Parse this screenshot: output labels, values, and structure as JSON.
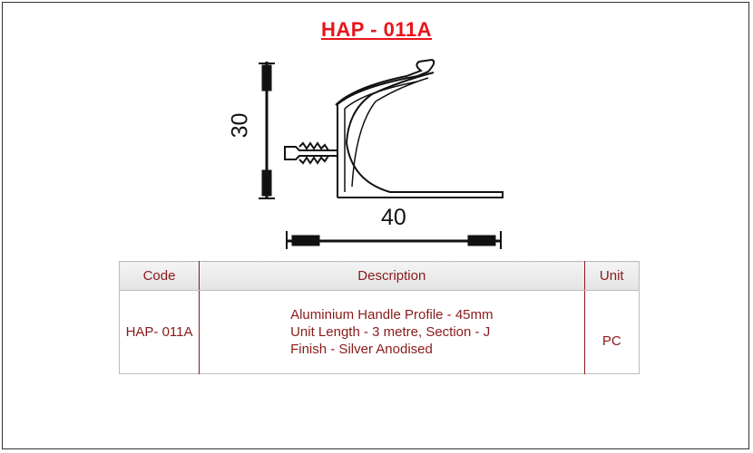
{
  "product": {
    "code_title": "HAP - 011A"
  },
  "drawing": {
    "dim_height_label": "30",
    "dim_width_label": "40"
  },
  "table": {
    "headers": {
      "code": "Code",
      "description": "Description",
      "unit": "Unit"
    },
    "rows": [
      {
        "code": "HAP- 011A",
        "description": [
          "Aluminium Handle Profile - 45mm",
          "Unit Length - 3 metre, Section - J",
          "Finish - Silver Anodised"
        ],
        "unit": "PC"
      }
    ]
  },
  "colors": {
    "title": "#e8141b",
    "table_text": "#8a1a1a"
  }
}
